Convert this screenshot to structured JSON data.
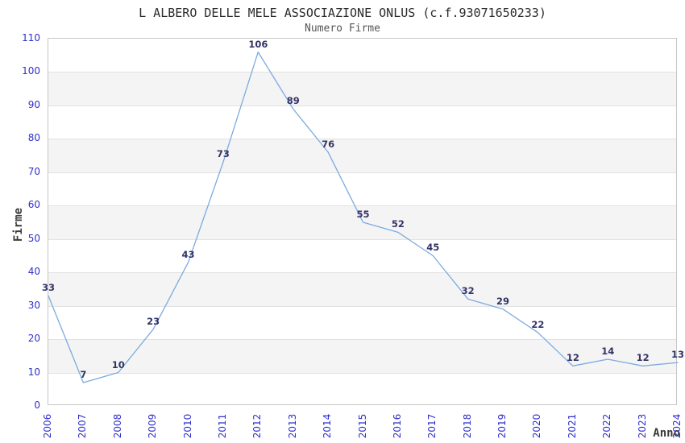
{
  "header": {
    "title": "L ALBERO DELLE MELE ASSOCIAZIONE ONLUS (c.f.93071650233)",
    "subtitle": "Numero Firme"
  },
  "chart_data": {
    "type": "line",
    "title": "L ALBERO DELLE MELE ASSOCIAZIONE ONLUS (c.f.93071650233)",
    "subtitle": "Numero Firme",
    "xlabel": "Anno",
    "ylabel": "Firme",
    "categories": [
      "2006",
      "2007",
      "2008",
      "2009",
      "2010",
      "2011",
      "2012",
      "2013",
      "2014",
      "2015",
      "2016",
      "2017",
      "2018",
      "2019",
      "2020",
      "2021",
      "2022",
      "2023",
      "2024"
    ],
    "values": [
      33,
      7,
      10,
      23,
      43,
      73,
      106,
      89,
      76,
      55,
      52,
      45,
      32,
      29,
      22,
      12,
      14,
      12,
      13
    ],
    "ylim": [
      0,
      110
    ],
    "ytick_step": 10,
    "grid": "horizontal",
    "background_bands": "alternating gray every 10 units starting at 10-20",
    "legend_position": "none",
    "point_labels_visible": true
  },
  "style": {
    "title_color": "#2b2b2b",
    "subtitle_color": "#555555",
    "axis_title_color": "#3c3c3c",
    "tick_label_color": "#2f2fcc",
    "point_label_color": "#333366",
    "line_color": "#7daae0",
    "band_color": "#f4f4f4",
    "grid_color": "#e2e2e2",
    "border_color": "#c6c6c6"
  }
}
